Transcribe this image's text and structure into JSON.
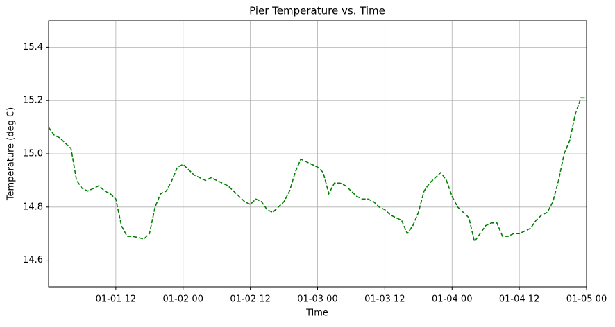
{
  "chart_data": {
    "type": "line",
    "title": "Pier Temperature vs. Time",
    "xlabel": "Time",
    "ylabel": "Temperature (deg C)",
    "x": [
      "01-01 00",
      "01-01 01",
      "01-01 02",
      "01-01 03",
      "01-01 04",
      "01-01 05",
      "01-01 06",
      "01-01 07",
      "01-01 08",
      "01-01 09",
      "01-01 10",
      "01-01 11",
      "01-01 12",
      "01-01 13",
      "01-01 14",
      "01-01 15",
      "01-01 16",
      "01-01 17",
      "01-01 18",
      "01-01 19",
      "01-01 20",
      "01-01 21",
      "01-01 22",
      "01-01 23",
      "01-02 00",
      "01-02 01",
      "01-02 02",
      "01-02 03",
      "01-02 04",
      "01-02 05",
      "01-02 06",
      "01-02 07",
      "01-02 08",
      "01-02 09",
      "01-02 10",
      "01-02 11",
      "01-02 12",
      "01-02 13",
      "01-02 14",
      "01-02 15",
      "01-02 16",
      "01-02 17",
      "01-02 18",
      "01-02 19",
      "01-02 20",
      "01-02 21",
      "01-02 22",
      "01-02 23",
      "01-03 00",
      "01-03 01",
      "01-03 02",
      "01-03 03",
      "01-03 04",
      "01-03 05",
      "01-03 06",
      "01-03 07",
      "01-03 08",
      "01-03 09",
      "01-03 10",
      "01-03 11",
      "01-03 12",
      "01-03 13",
      "01-03 14",
      "01-03 15",
      "01-03 16",
      "01-03 17",
      "01-03 18",
      "01-03 19",
      "01-03 20",
      "01-03 21",
      "01-03 22",
      "01-03 23",
      "01-04 00",
      "01-04 01",
      "01-04 02",
      "01-04 03",
      "01-04 04",
      "01-04 05",
      "01-04 06",
      "01-04 07",
      "01-04 08",
      "01-04 09",
      "01-04 10",
      "01-04 11",
      "01-04 12",
      "01-04 13",
      "01-04 14",
      "01-04 15",
      "01-04 16",
      "01-04 17",
      "01-04 18",
      "01-04 19",
      "01-04 20",
      "01-04 21",
      "01-04 22",
      "01-04 23",
      "01-05 00"
    ],
    "series": [
      {
        "color": "#008000",
        "values": [
          15.1,
          15.07,
          15.06,
          15.04,
          15.02,
          14.9,
          14.87,
          14.86,
          14.87,
          14.88,
          14.86,
          14.85,
          14.83,
          14.73,
          14.69,
          14.69,
          14.685,
          14.68,
          14.7,
          14.8,
          14.85,
          14.86,
          14.9,
          14.95,
          14.96,
          14.94,
          14.92,
          14.91,
          14.9,
          14.91,
          14.9,
          14.89,
          14.88,
          14.86,
          14.84,
          14.82,
          14.81,
          14.83,
          14.82,
          14.79,
          14.78,
          14.8,
          14.82,
          14.86,
          14.93,
          14.98,
          14.97,
          14.96,
          14.95,
          14.93,
          14.85,
          14.89,
          14.89,
          14.88,
          14.86,
          14.84,
          14.83,
          14.83,
          14.82,
          14.8,
          14.79,
          14.77,
          14.76,
          14.75,
          14.7,
          14.73,
          14.78,
          14.86,
          14.89,
          14.91,
          14.93,
          14.9,
          14.84,
          14.8,
          14.78,
          14.76,
          14.67,
          14.7,
          14.73,
          14.74,
          14.74,
          14.69,
          14.69,
          14.7,
          14.7,
          14.71,
          14.72,
          14.75,
          14.77,
          14.78,
          14.82,
          14.9,
          15.0,
          15.05,
          15.15,
          15.21,
          15.21
        ]
      }
    ],
    "xlim": [
      "01-01 00",
      "01-05 00"
    ],
    "xticks": [
      "01-01 12",
      "01-02 00",
      "01-02 12",
      "01-03 00",
      "01-03 12",
      "01-04 00",
      "01-04 12",
      "01-05 00"
    ],
    "ylim": [
      14.5,
      15.5
    ],
    "yticks": [
      14.6,
      14.8,
      {
        "value": 15,
        "label": "15.0"
      },
      15.2,
      15.4
    ],
    "grid": true,
    "line_style": "dashed"
  }
}
